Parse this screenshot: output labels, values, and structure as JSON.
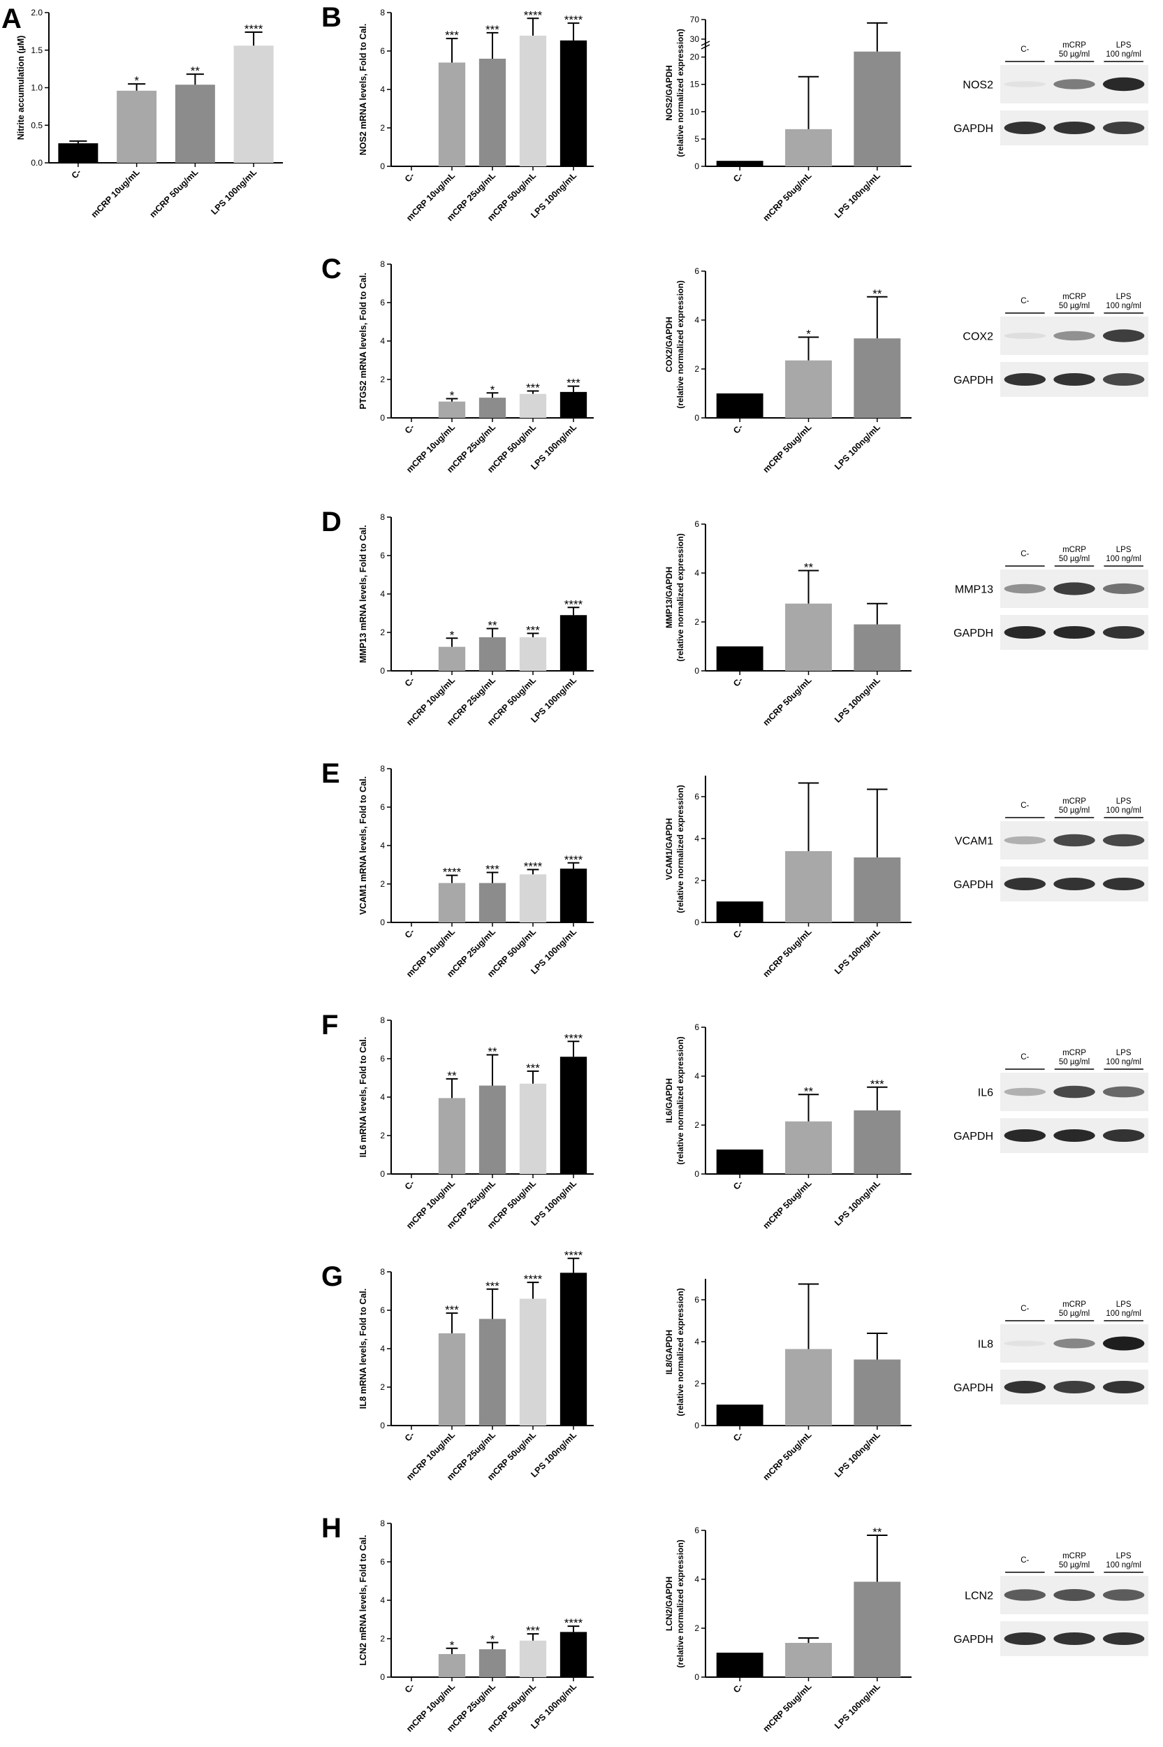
{
  "colors": {
    "black": "#000000",
    "dark_gray": "#777777",
    "mid_gray": "#8c8c8c",
    "light_gray": "#a8a8a8",
    "lightest_gray": "#d6d6d6",
    "blot_background": "#efefef",
    "band": "#1e1e1e"
  },
  "chart_data": [
    {
      "id": "A",
      "panel": "A",
      "type": "bar",
      "categories": [
        "C-",
        "mCRP 10ug/mL",
        "mCRP 50ug/mL",
        "LPS 100ng/mL"
      ],
      "values": [
        0.26,
        0.96,
        1.04,
        1.56
      ],
      "errors": [
        0.03,
        0.09,
        0.14,
        0.18
      ],
      "significance": [
        "",
        "*",
        "**",
        "****"
      ],
      "colors": [
        "#000000",
        "#a8a8a8",
        "#8c8c8c",
        "#d6d6d6"
      ],
      "ylabel": "Nitrite accumulation (µM)",
      "ylim": [
        0,
        2
      ],
      "yticks": [
        "0.0",
        "0.5",
        "1.0",
        "1.5",
        "2.0"
      ]
    },
    {
      "id": "B1",
      "panel": "B",
      "type": "bar",
      "categories": [
        "C-",
        "mCRP 10ug/mL",
        "mCRP 25ug/mL",
        "mCRP 50ug/mL",
        "LPS 100ng/mL"
      ],
      "values": [
        0,
        5.4,
        5.6,
        6.8,
        6.55
      ],
      "errors": [
        0,
        1.25,
        1.35,
        0.9,
        0.9
      ],
      "significance": [
        "",
        "***",
        "***",
        "****",
        "****"
      ],
      "colors": [
        "#000000",
        "#a8a8a8",
        "#8c8c8c",
        "#d6d6d6",
        "#000000"
      ],
      "ylabel": "NOS2 mRNA levels, Fold to Cal.",
      "ylim": [
        0,
        8
      ],
      "yticks": [
        "0",
        "2",
        "4",
        "6",
        "8"
      ]
    },
    {
      "id": "B2",
      "panel": "B",
      "type": "bar",
      "broken_axis": true,
      "categories": [
        "C-",
        "mCRP 50ug/mL",
        "LPS 100ng/mL"
      ],
      "values": [
        1,
        6.8,
        21
      ],
      "errors": [
        0,
        9.6,
        42
      ],
      "significance": [
        "",
        "",
        ""
      ],
      "colors": [
        "#000000",
        "#a8a8a8",
        "#8c8c8c"
      ],
      "ylabel": [
        "NOS2/GAPDH",
        "(relative normalized expression)"
      ],
      "ylim": [
        0,
        22
      ],
      "yticks": [
        "0",
        "5",
        "10",
        "15",
        "20"
      ],
      "upper_yticks": [
        "30",
        "70"
      ]
    },
    {
      "id": "C1",
      "panel": "C",
      "type": "bar",
      "categories": [
        "C-",
        "mCRP 10ug/mL",
        "mCRP 25ug/mL",
        "mCRP 50ug/mL",
        "LPS 100ng/mL"
      ],
      "values": [
        0,
        0.85,
        1.05,
        1.25,
        1.35
      ],
      "errors": [
        0,
        0.15,
        0.25,
        0.15,
        0.3
      ],
      "significance": [
        "",
        "*",
        "*",
        "***",
        "***"
      ],
      "colors": [
        "#000000",
        "#a8a8a8",
        "#8c8c8c",
        "#d6d6d6",
        "#000000"
      ],
      "ylabel": "PTGS2 mRNA levels, Fold to Cal.",
      "ylim": [
        0,
        8
      ],
      "yticks": [
        "0",
        "2",
        "4",
        "6",
        "8"
      ]
    },
    {
      "id": "C2",
      "panel": "C",
      "type": "bar",
      "categories": [
        "C-",
        "mCRP 50ug/mL",
        "LPS 100ng/mL"
      ],
      "values": [
        1,
        2.35,
        3.25
      ],
      "errors": [
        0,
        0.95,
        1.7
      ],
      "significance": [
        "",
        "*",
        "**"
      ],
      "colors": [
        "#000000",
        "#a8a8a8",
        "#8c8c8c"
      ],
      "ylabel": [
        "COX2/GAPDH",
        "(relative normalized expression)"
      ],
      "ylim": [
        0,
        6
      ],
      "yticks": [
        "0",
        "2",
        "4",
        "6"
      ]
    },
    {
      "id": "D1",
      "panel": "D",
      "type": "bar",
      "categories": [
        "C-",
        "mCRP 10ug/mL",
        "mCRP 25ug/mL",
        "mCRP 50ug/mL",
        "LPS 100ng/mL"
      ],
      "values": [
        0,
        1.25,
        1.75,
        1.75,
        2.9
      ],
      "errors": [
        0,
        0.45,
        0.45,
        0.2,
        0.4
      ],
      "significance": [
        "",
        "*",
        "**",
        "***",
        "****"
      ],
      "colors": [
        "#000000",
        "#a8a8a8",
        "#8c8c8c",
        "#d6d6d6",
        "#000000"
      ],
      "ylabel": "MMP13 mRNA levels, Fold to Cal.",
      "ylim": [
        0,
        8
      ],
      "yticks": [
        "0",
        "2",
        "4",
        "6",
        "8"
      ]
    },
    {
      "id": "D2",
      "panel": "D",
      "type": "bar",
      "categories": [
        "C-",
        "mCRP 50ug/mL",
        "LPS 100ng/mL"
      ],
      "values": [
        1,
        2.75,
        1.9
      ],
      "errors": [
        0,
        1.35,
        0.85
      ],
      "significance": [
        "",
        "**",
        ""
      ],
      "colors": [
        "#000000",
        "#a8a8a8",
        "#8c8c8c"
      ],
      "ylabel": [
        "MMP13/GAPDH",
        "(relative normalized expression)"
      ],
      "ylim": [
        0,
        6
      ],
      "yticks": [
        "0",
        "2",
        "4",
        "6"
      ]
    },
    {
      "id": "E1",
      "panel": "E",
      "type": "bar",
      "categories": [
        "C-",
        "mCRP 10ug/mL",
        "mCRP 25ug/mL",
        "mCRP 50ug/mL",
        "LPS 100ng/mL"
      ],
      "values": [
        0,
        2.05,
        2.05,
        2.5,
        2.8
      ],
      "errors": [
        0,
        0.4,
        0.55,
        0.25,
        0.3
      ],
      "significance": [
        "",
        "****",
        "***",
        "****",
        "****"
      ],
      "colors": [
        "#000000",
        "#a8a8a8",
        "#8c8c8c",
        "#d6d6d6",
        "#000000"
      ],
      "ylabel": "VCAM1 mRNA levels, Fold to Cal.",
      "ylim": [
        0,
        8
      ],
      "yticks": [
        "0",
        "2",
        "4",
        "6",
        "8"
      ]
    },
    {
      "id": "E2",
      "panel": "E",
      "type": "bar",
      "categories": [
        "C-",
        "mCRP 50ug/mL",
        "LPS 100ng/mL"
      ],
      "values": [
        1,
        3.4,
        3.1
      ],
      "errors": [
        0,
        3.25,
        3.25
      ],
      "significance": [
        "",
        "",
        ""
      ],
      "colors": [
        "#000000",
        "#a8a8a8",
        "#8c8c8c"
      ],
      "ylabel": [
        "VCAM1/GAPDH",
        "(relative normalized expression)"
      ],
      "ylim": [
        0,
        7
      ],
      "yticks": [
        "0",
        "2",
        "4",
        "6"
      ]
    },
    {
      "id": "F1",
      "panel": "F",
      "type": "bar",
      "categories": [
        "C-",
        "mCRP 10ug/mL",
        "mCRP 25ug/mL",
        "mCRP 50ug/mL",
        "LPS 100ng/mL"
      ],
      "values": [
        0,
        3.95,
        4.6,
        4.7,
        6.1
      ],
      "errors": [
        0,
        1.0,
        1.6,
        0.65,
        0.8
      ],
      "significance": [
        "",
        "**",
        "**",
        "***",
        "****"
      ],
      "colors": [
        "#000000",
        "#a8a8a8",
        "#8c8c8c",
        "#d6d6d6",
        "#000000"
      ],
      "ylabel": "IL6 mRNA levels, Fold to Cal.",
      "ylim": [
        0,
        8
      ],
      "yticks": [
        "0",
        "2",
        "4",
        "6",
        "8"
      ]
    },
    {
      "id": "F2",
      "panel": "F",
      "type": "bar",
      "categories": [
        "C-",
        "mCRP 50ug/mL",
        "LPS 100ng/mL"
      ],
      "values": [
        1,
        2.15,
        2.6
      ],
      "errors": [
        0,
        1.1,
        0.95
      ],
      "significance": [
        "",
        "**",
        "***"
      ],
      "colors": [
        "#000000",
        "#a8a8a8",
        "#8c8c8c"
      ],
      "ylabel": [
        "IL6/GAPDH",
        "(relative normalized expression)"
      ],
      "ylim": [
        0,
        6
      ],
      "yticks": [
        "0",
        "2",
        "4",
        "6"
      ]
    },
    {
      "id": "G1",
      "panel": "G",
      "type": "bar",
      "categories": [
        "C-",
        "mCRP 10ug/mL",
        "mCRP 25ug/mL",
        "mCRP 50ug/mL",
        "LPS 100ng/mL"
      ],
      "values": [
        0,
        4.8,
        5.55,
        6.6,
        7.95
      ],
      "errors": [
        0,
        1.05,
        1.55,
        0.85,
        0.75
      ],
      "significance": [
        "",
        "***",
        "***",
        "****",
        "****"
      ],
      "colors": [
        "#000000",
        "#a8a8a8",
        "#8c8c8c",
        "#d6d6d6",
        "#000000"
      ],
      "ylabel": "IL8 mRNA levels, Fold to Cal.",
      "ylim": [
        0,
        8
      ],
      "yticks": [
        "0",
        "2",
        "4",
        "6",
        "8"
      ]
    },
    {
      "id": "G2",
      "panel": "G",
      "type": "bar",
      "categories": [
        "C-",
        "mCRP 50ug/mL",
        "LPS 100ng/mL"
      ],
      "values": [
        1,
        3.65,
        3.15
      ],
      "errors": [
        0,
        3.1,
        1.25
      ],
      "significance": [
        "",
        "",
        ""
      ],
      "colors": [
        "#000000",
        "#a8a8a8",
        "#8c8c8c"
      ],
      "ylabel": [
        "IL8/GAPDH",
        "(relative normalized expression)"
      ],
      "ylim": [
        0,
        7
      ],
      "yticks": [
        "0",
        "2",
        "4",
        "6"
      ]
    },
    {
      "id": "H1",
      "panel": "H",
      "type": "bar",
      "categories": [
        "C-",
        "mCRP 10ug/mL",
        "mCRP 25ug/mL",
        "mCRP 50ug/mL",
        "LPS 100ng/mL"
      ],
      "values": [
        0,
        1.2,
        1.45,
        1.9,
        2.35
      ],
      "errors": [
        0,
        0.3,
        0.35,
        0.35,
        0.3
      ],
      "significance": [
        "",
        "*",
        "*",
        "***",
        "****"
      ],
      "colors": [
        "#000000",
        "#a8a8a8",
        "#8c8c8c",
        "#d6d6d6",
        "#000000"
      ],
      "ylabel": "LCN2 mRNA levels, Fold to Cal.",
      "ylim": [
        0,
        8
      ],
      "yticks": [
        "0",
        "2",
        "4",
        "6",
        "8"
      ]
    },
    {
      "id": "H2",
      "panel": "H",
      "type": "bar",
      "categories": [
        "C-",
        "mCRP 50ug/mL",
        "LPS 100ng/mL"
      ],
      "values": [
        1,
        1.4,
        3.9
      ],
      "errors": [
        0,
        0.2,
        1.9
      ],
      "significance": [
        "",
        "",
        "**"
      ],
      "colors": [
        "#000000",
        "#a8a8a8",
        "#8c8c8c"
      ],
      "ylabel": [
        "LCN2/GAPDH",
        "(relative normalized expression)"
      ],
      "ylim": [
        0,
        6
      ],
      "yticks": [
        "0",
        "2",
        "4",
        "6"
      ]
    }
  ],
  "blots": [
    {
      "id": "blot-nos2",
      "target": "NOS2",
      "loading": "GAPDH",
      "lanes": [
        "C-",
        [
          "mCRP",
          "50 µg/ml"
        ],
        [
          "LPS",
          "100 ng/ml"
        ]
      ],
      "target_intensity": [
        0.05,
        0.55,
        0.95
      ],
      "loading_intensity": [
        0.9,
        0.9,
        0.85
      ]
    },
    {
      "id": "blot-cox2",
      "target": "COX2",
      "loading": "GAPDH",
      "lanes": [
        "C-",
        [
          "mCRP",
          "50 µg/ml"
        ],
        [
          "LPS",
          "100 ng/ml"
        ]
      ],
      "target_intensity": [
        0.08,
        0.45,
        0.85
      ],
      "loading_intensity": [
        0.9,
        0.9,
        0.8
      ]
    },
    {
      "id": "blot-mmp13",
      "target": "MMP13",
      "loading": "GAPDH",
      "lanes": [
        "C-",
        [
          "mCRP",
          "50 µg/ml"
        ],
        [
          "LPS",
          "100 ng/ml"
        ]
      ],
      "target_intensity": [
        0.45,
        0.85,
        0.6
      ],
      "loading_intensity": [
        0.95,
        0.95,
        0.9
      ]
    },
    {
      "id": "blot-vcam1",
      "target": "VCAM1",
      "loading": "GAPDH",
      "lanes": [
        "C-",
        [
          "mCRP",
          "50 µg/ml"
        ],
        [
          "LPS",
          "100 ng/ml"
        ]
      ],
      "target_intensity": [
        0.3,
        0.8,
        0.8
      ],
      "loading_intensity": [
        0.9,
        0.9,
        0.9
      ]
    },
    {
      "id": "blot-il6",
      "target": "IL6",
      "loading": "GAPDH",
      "lanes": [
        "C-",
        [
          "mCRP",
          "50 µg/ml"
        ],
        [
          "LPS",
          "100 ng/ml"
        ]
      ],
      "target_intensity": [
        0.3,
        0.8,
        0.65
      ],
      "loading_intensity": [
        0.95,
        0.95,
        0.9
      ]
    },
    {
      "id": "blot-il8",
      "target": "IL8",
      "loading": "GAPDH",
      "lanes": [
        "C-",
        [
          "mCRP",
          "50 µg/ml"
        ],
        [
          "LPS",
          "100 ng/ml"
        ]
      ],
      "target_intensity": [
        0.02,
        0.5,
        1.0
      ],
      "loading_intensity": [
        0.9,
        0.85,
        0.9
      ]
    },
    {
      "id": "blot-lcn2",
      "target": "LCN2",
      "loading": "GAPDH",
      "lanes": [
        "C-",
        [
          "mCRP",
          "50 µg/ml"
        ],
        [
          "LPS",
          "100 ng/ml"
        ]
      ],
      "target_intensity": [
        0.7,
        0.75,
        0.7
      ],
      "loading_intensity": [
        0.9,
        0.9,
        0.9
      ]
    }
  ]
}
